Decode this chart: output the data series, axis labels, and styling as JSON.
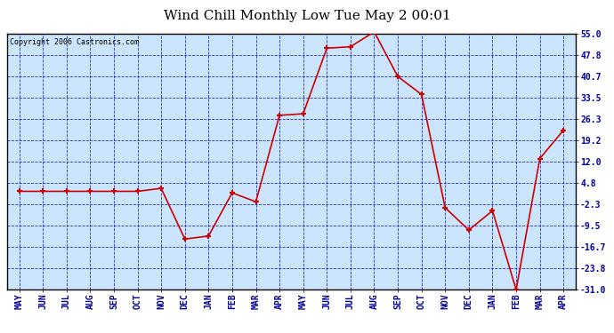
{
  "title": "Wind Chill Monthly Low Tue May 2 00:01",
  "copyright": "Copyright 2006 Castronics.com",
  "months": [
    "MAY",
    "JUN",
    "JUL",
    "AUG",
    "SEP",
    "OCT",
    "NOV",
    "DEC",
    "JAN",
    "FEB",
    "MAR",
    "APR",
    "MAY",
    "JUN",
    "JUL",
    "AUG",
    "SEP",
    "OCT",
    "NOV",
    "DEC",
    "JAN",
    "FEB",
    "MAR",
    "APR"
  ],
  "values": [
    2.0,
    2.0,
    2.0,
    2.0,
    2.0,
    2.0,
    3.0,
    -14.0,
    -13.0,
    1.5,
    -1.5,
    27.5,
    28.0,
    50.0,
    50.5,
    55.5,
    40.5,
    34.5,
    -3.5,
    -11.0,
    -4.5,
    -31.0,
    13.0,
    22.5
  ],
  "line_color": "#cc0000",
  "marker_color": "#cc0000",
  "bg_color": "#cce5ff",
  "grid_color": "#0000bb",
  "axis_label_color": "#000099",
  "title_color": "#000000",
  "ylim_min": -31.0,
  "ylim_max": 55.0,
  "yticks": [
    55.0,
    47.8,
    40.7,
    33.5,
    26.3,
    19.2,
    12.0,
    4.8,
    -2.3,
    -9.5,
    -16.7,
    -23.8,
    -31.0
  ],
  "ytick_labels": [
    "55.0",
    "47.8",
    "40.7",
    "33.5",
    "26.3",
    "19.2",
    "12.0",
    "4.8",
    "-2.3",
    "-9.5",
    "-16.7",
    "-23.8",
    "-31.0"
  ]
}
